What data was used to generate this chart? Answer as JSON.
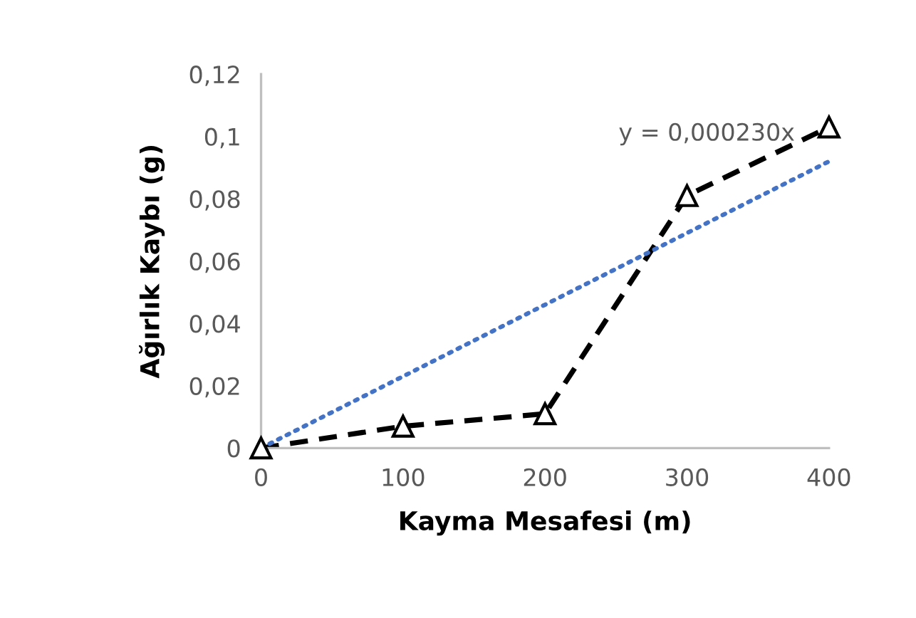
{
  "chart_data": {
    "type": "line",
    "xlabel": "Kayma Mesafesi (m)",
    "ylabel": "Ağırlık Kaybı (g)",
    "x": [
      0,
      100,
      200,
      300,
      400
    ],
    "series": [
      {
        "color": "#000000",
        "values": [
          0,
          0.007,
          0.011,
          0.081,
          0.103
        ],
        "line_style": "dashed",
        "marker": "triangle"
      },
      {
        "type": "line",
        "x": [
          0,
          400
        ],
        "values": [
          0,
          0.092
        ],
        "color": "#4472c4",
        "line_style": "dotted",
        "marker": "none"
      }
    ],
    "annotations": [
      "y = 0,000230x"
    ],
    "xlim": [
      0,
      400
    ],
    "xticks": [
      0,
      100,
      200,
      300,
      400
    ],
    "ylim": [
      0,
      0.12
    ],
    "yticks": [
      0,
      {
        "value": 0.02,
        "label": "0,02"
      },
      {
        "value": 0.04,
        "label": "0,04"
      },
      {
        "value": 0.06,
        "label": "0,06"
      },
      {
        "value": 0.08,
        "label": "0,08"
      },
      {
        "value": 0.1,
        "label": "0,1"
      },
      {
        "value": 0.12,
        "label": "0,12"
      }
    ],
    "grid": false,
    "legend": false
  }
}
